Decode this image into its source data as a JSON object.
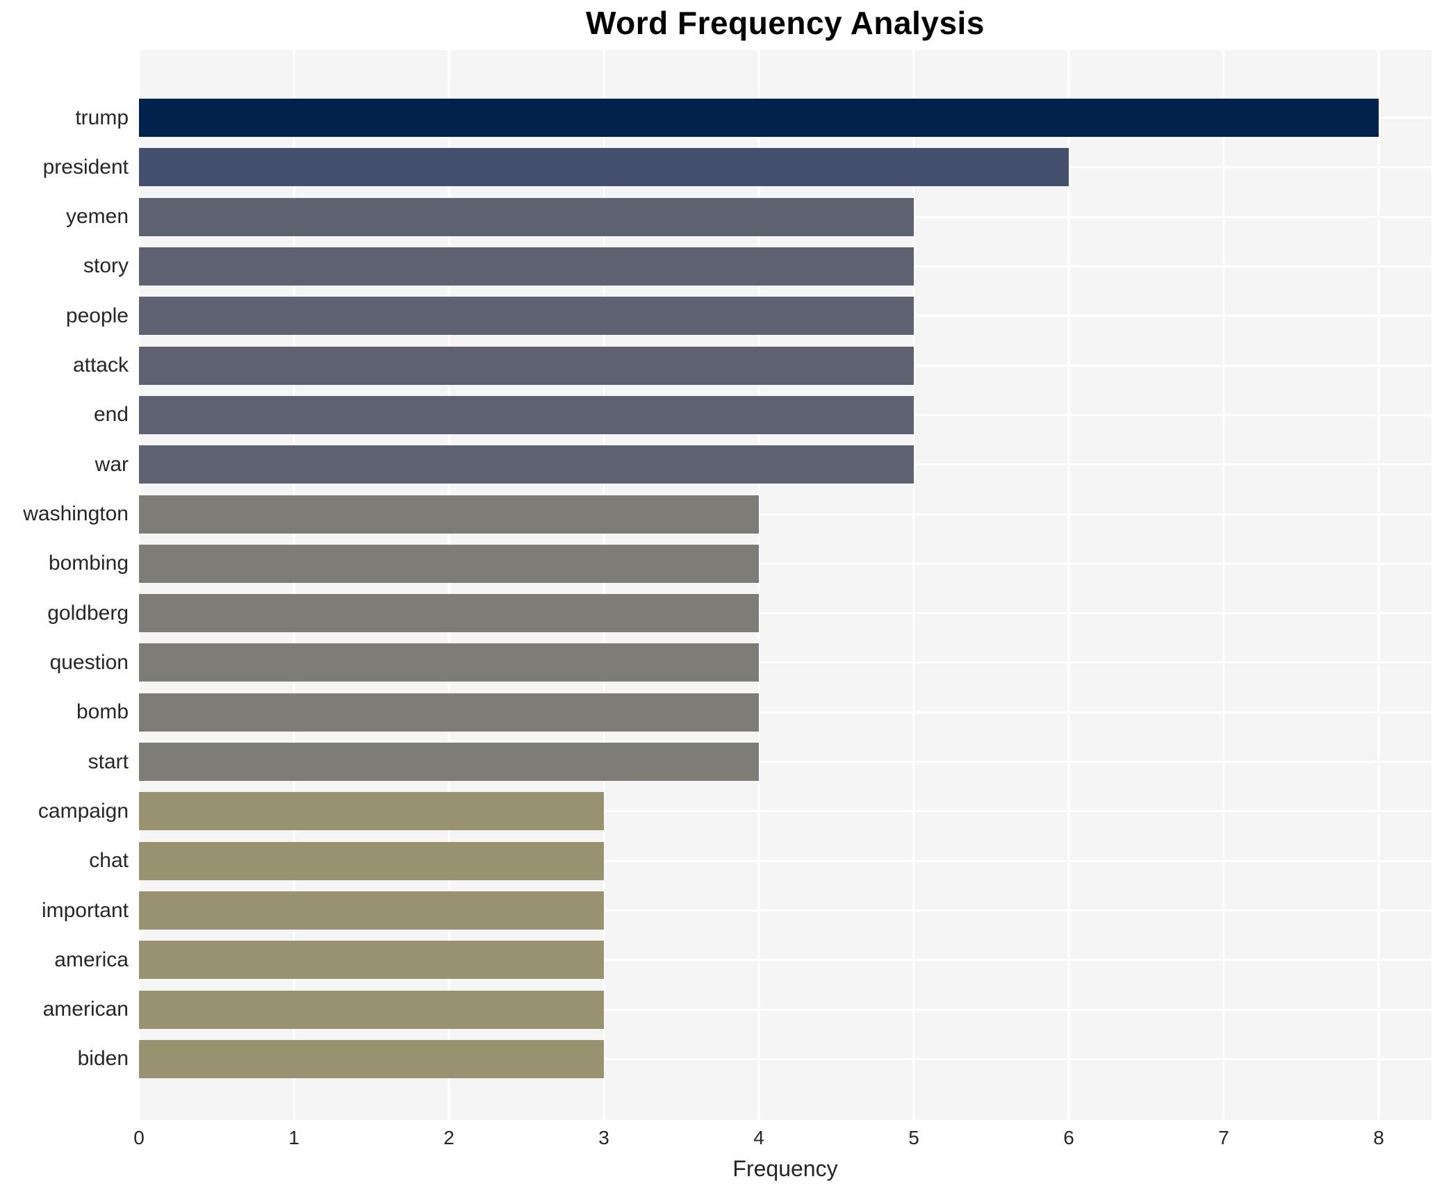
{
  "figure": {
    "title": "Word Frequency Analysis"
  },
  "chart_data": {
    "type": "bar",
    "orientation": "horizontal",
    "title": "Word Frequency Analysis",
    "xlabel": "Frequency",
    "ylabel": "",
    "categories": [
      "trump",
      "president",
      "yemen",
      "story",
      "people",
      "attack",
      "end",
      "war",
      "washington",
      "bombing",
      "goldberg",
      "question",
      "bomb",
      "start",
      "campaign",
      "chat",
      "important",
      "america",
      "american",
      "biden"
    ],
    "values": [
      8,
      6,
      5,
      5,
      5,
      5,
      5,
      5,
      4,
      4,
      4,
      4,
      4,
      4,
      3,
      3,
      3,
      3,
      3,
      3
    ],
    "xlim": [
      0,
      8
    ],
    "xticks": [
      "0",
      "1",
      "2",
      "3",
      "4",
      "5",
      "6",
      "7",
      "8"
    ],
    "grid": true,
    "legend_position": "none",
    "plot_background": "#f5f5f6",
    "grid_color": "#ffffff",
    "text_color": "#262626",
    "bar_colors_by_value": {
      "8": "#02224d",
      "6": "#45506e",
      "5": "#5e6270",
      "4": "#7d7c77",
      "3": "#989271"
    }
  }
}
